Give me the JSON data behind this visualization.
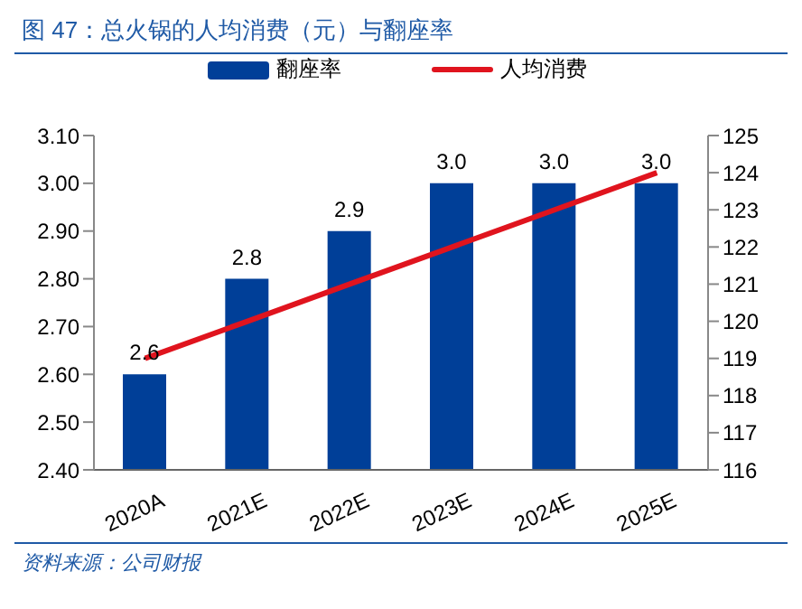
{
  "chart_data": {
    "type": "bar",
    "title": "图 47：总火锅的人均消费（元）与翻座率",
    "categories": [
      "2020A",
      "2021E",
      "2022E",
      "2023E",
      "2024E",
      "2025E"
    ],
    "series": [
      {
        "name": "翻座率",
        "color": "#003f98",
        "values": [
          2.6,
          2.8,
          2.9,
          3.0,
          3.0,
          3.0
        ],
        "value_labels": [
          "2.6",
          "2.8",
          "2.9",
          "3.0",
          "3.0",
          "3.0"
        ]
      },
      {
        "name": "人均消费",
        "type": "line",
        "axis": "y2",
        "color": "#e0141e",
        "values": [
          119,
          120,
          121,
          122,
          123,
          124
        ]
      }
    ],
    "ylim": [
      2.4,
      3.1
    ],
    "yticks": [
      {
        "value": 2.4,
        "label": "2.40"
      },
      {
        "value": 2.5,
        "label": "2.50"
      },
      {
        "value": 2.6,
        "label": "2.60"
      },
      {
        "value": 2.7,
        "label": "2.70"
      },
      {
        "value": 2.8,
        "label": "2.80"
      },
      {
        "value": 2.9,
        "label": "2.90"
      },
      {
        "value": 3.0,
        "label": "3.00"
      },
      {
        "value": 3.1,
        "label": "3.10"
      }
    ],
    "y2lim": [
      116,
      125
    ],
    "y2ticks": [
      116,
      117,
      118,
      119,
      120,
      121,
      122,
      123,
      124,
      125
    ],
    "grid": false,
    "legend": "top",
    "marker": "none",
    "annotations": [
      "资料来源：公司财报"
    ]
  }
}
